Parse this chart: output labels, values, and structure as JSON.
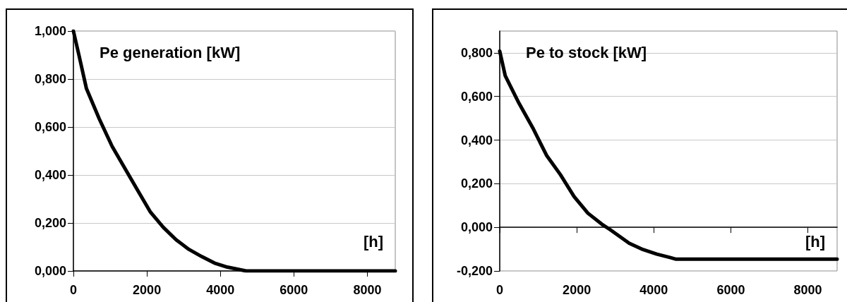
{
  "chart_data": [
    {
      "type": "line",
      "title": "Pe generation [kW]",
      "xlabel": "[h]",
      "x": [
        0,
        150,
        355,
        704,
        1052,
        1400,
        1749,
        2098,
        2446,
        2794,
        3143,
        3491,
        3840,
        4188,
        4537,
        4700,
        6000,
        8760
      ],
      "series": [
        {
          "color": "#000000",
          "values": [
            1.0,
            0.9,
            0.76,
            0.634,
            0.52,
            0.428,
            0.336,
            0.245,
            0.182,
            0.13,
            0.09,
            0.06,
            0.033,
            0.016,
            0.005,
            0.0,
            0.0,
            0.0
          ]
        }
      ],
      "xlim": [
        0,
        8760
      ],
      "xticks": [
        0,
        2000,
        4000,
        6000,
        8000
      ],
      "ylim": [
        0,
        1.0
      ],
      "yticks": [
        {
          "value": 0,
          "label": "0,000"
        },
        {
          "value": 0.2,
          "label": "0,200"
        },
        {
          "value": 0.4,
          "label": "0,400"
        },
        {
          "value": 0.6,
          "label": "0,600"
        },
        {
          "value": 0.8,
          "label": "0,800"
        },
        {
          "value": 1.0,
          "label": "1,000"
        }
      ],
      "grid": "y",
      "marker": "none",
      "line_style": "solid"
    },
    {
      "type": "line",
      "title": "Pe to stock [kW]",
      "xlabel": "[h]",
      "x": [
        0,
        143,
        500,
        858,
        1216,
        1574,
        1931,
        2289,
        2647,
        2861,
        3362,
        3720,
        4077,
        4435,
        4578,
        6000,
        8760
      ],
      "series": [
        {
          "color": "#000000",
          "values": [
            0.808,
            0.695,
            0.569,
            0.456,
            0.33,
            0.242,
            0.141,
            0.065,
            0.015,
            -0.01,
            -0.073,
            -0.102,
            -0.123,
            -0.139,
            -0.146,
            -0.146,
            -0.146
          ]
        }
      ],
      "xlim": [
        0,
        8760
      ],
      "xticks": [
        0,
        2000,
        4000,
        6000,
        8000
      ],
      "ylim": [
        -0.2,
        0.9
      ],
      "yticks": [
        {
          "value": -0.2,
          "label": "-0,200"
        },
        {
          "value": 0,
          "label": "0,000"
        },
        {
          "value": 0.2,
          "label": "0,200"
        },
        {
          "value": 0.4,
          "label": "0,400"
        },
        {
          "value": 0.6,
          "label": "0,600"
        },
        {
          "value": 0.8,
          "label": "0,800"
        }
      ],
      "grid": "y",
      "marker": "none",
      "line_style": "solid"
    }
  ]
}
